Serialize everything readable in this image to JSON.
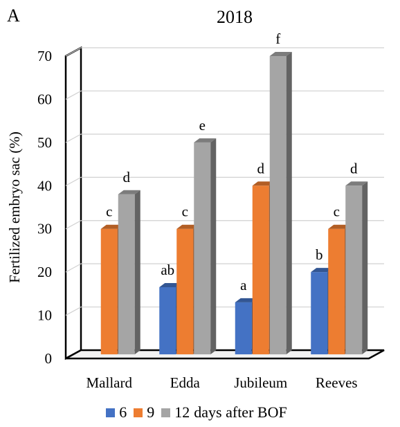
{
  "panel_letter": "A",
  "chart_data": {
    "type": "bar",
    "title": "2018",
    "ylabel": "Fertilized embryo sac (%)",
    "xlabel": "",
    "ylim": [
      0,
      70
    ],
    "yticks": [
      0,
      10,
      20,
      30,
      40,
      50,
      60,
      70
    ],
    "grid": true,
    "style": "3d-column",
    "categories": [
      "Mallard",
      "Edda",
      "Jubileum",
      "Reeves"
    ],
    "series": [
      {
        "name": "6",
        "color": "#4472C4",
        "values": [
          0,
          16.5,
          13,
          20
        ],
        "labels": [
          "",
          "ab",
          "a",
          "b"
        ]
      },
      {
        "name": "9",
        "color": "#ED7D31",
        "values": [
          30,
          30,
          40,
          30
        ],
        "labels": [
          "c",
          "c",
          "d",
          "c"
        ]
      },
      {
        "name": "12",
        "color": "#A5A5A5",
        "values": [
          38,
          50,
          70,
          40
        ],
        "labels": [
          "d",
          "e",
          "f",
          "d"
        ]
      }
    ],
    "legend": {
      "position": "bottom",
      "suffix": "days after BOF"
    }
  }
}
